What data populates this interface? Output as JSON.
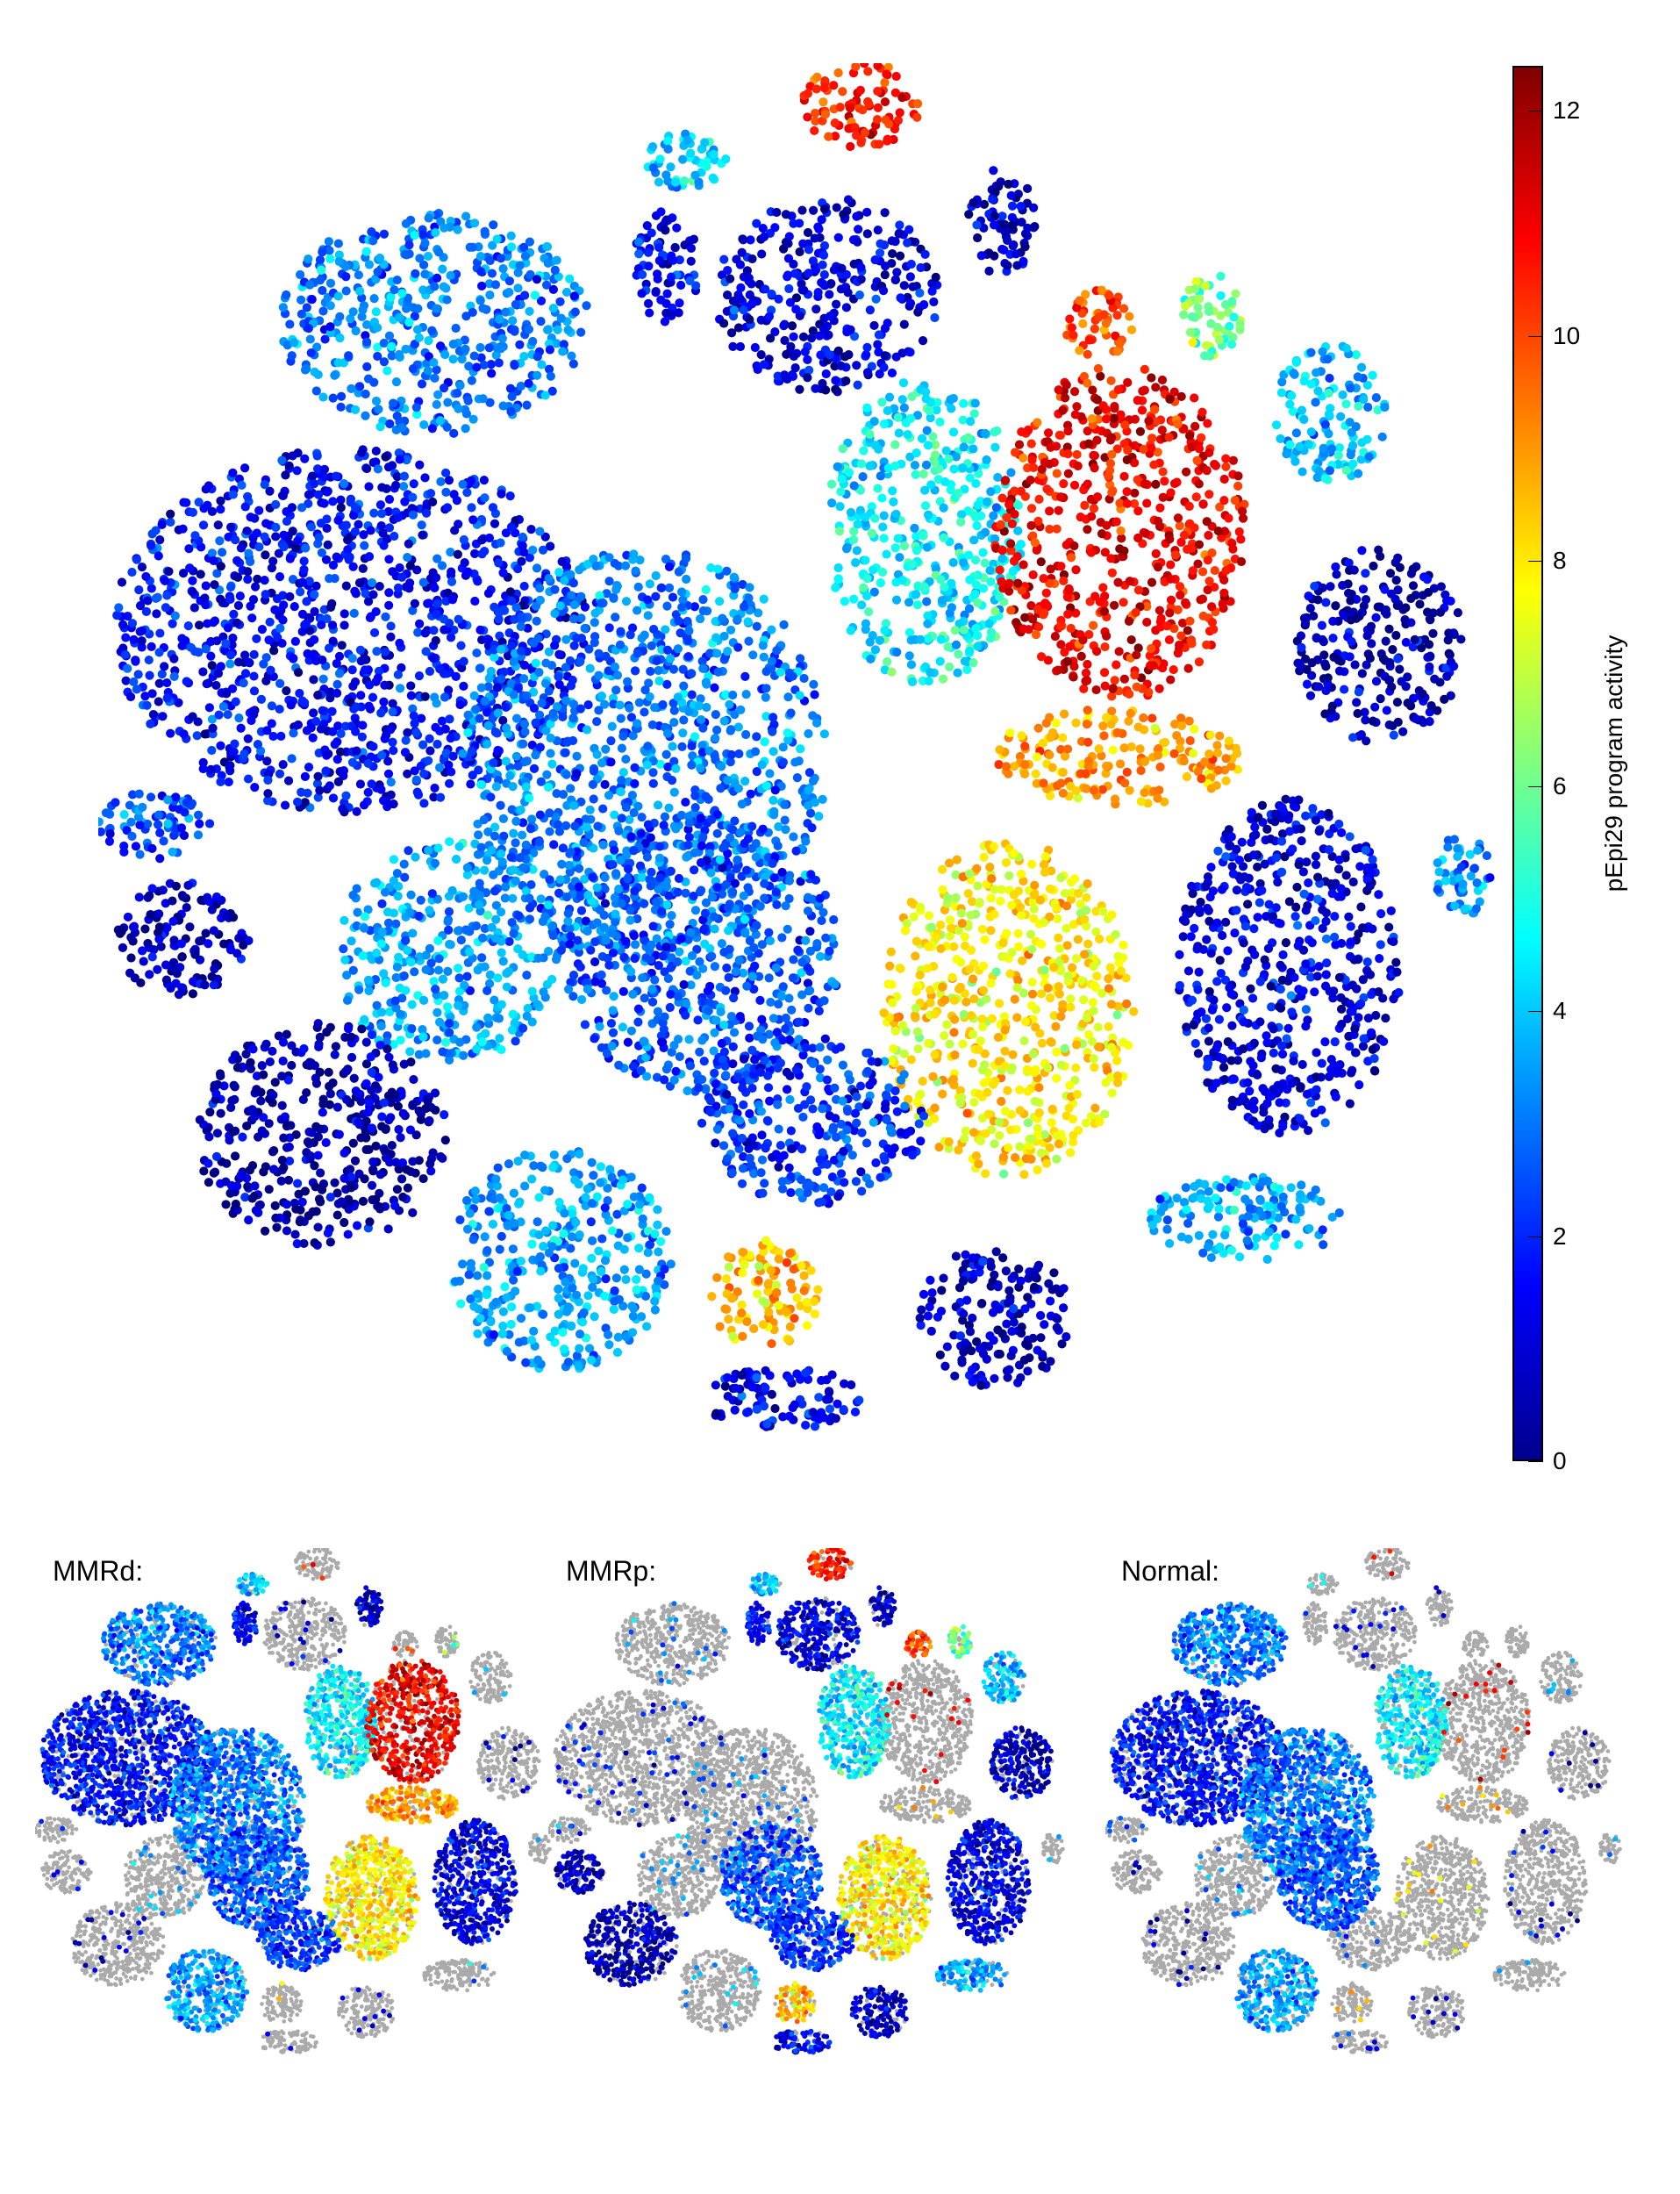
{
  "chart_data": {
    "type": "scatter",
    "title": "",
    "xlabel": "",
    "ylabel": "",
    "colorbar": {
      "label": "pEpi29 program activity",
      "range": [
        0,
        12.4
      ],
      "ticks": [
        "0",
        "2",
        "4",
        "6",
        "8",
        "10",
        "12"
      ],
      "tick_values": [
        0,
        2,
        4,
        6,
        8,
        10,
        12
      ],
      "colormap": "jet"
    },
    "grid": false,
    "background_color": "#aaaaaa",
    "panels": [
      {
        "title": "MMRd:"
      },
      {
        "title": "MMRp:"
      },
      {
        "title": "Normal:"
      }
    ]
  }
}
